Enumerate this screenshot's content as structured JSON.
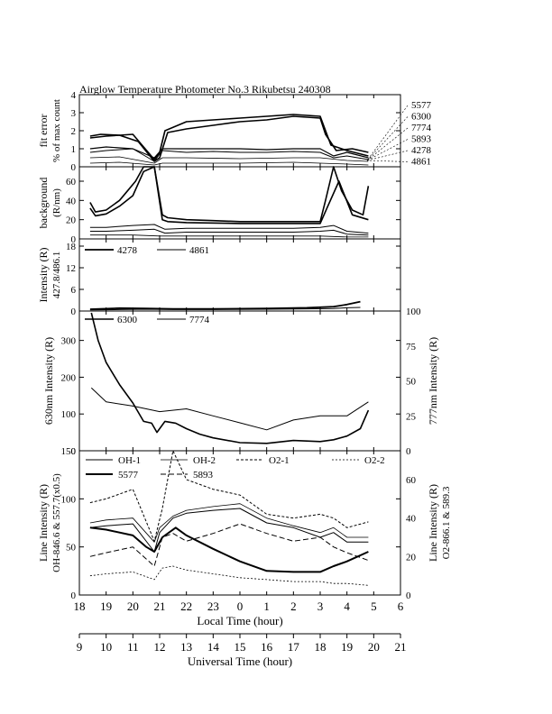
{
  "title": "Airglow Temperature Photometer No.3  Rikubetsu    240308",
  "chart_data": [
    {
      "id": "fit_error",
      "type": "line",
      "ylabel": "fit error",
      "ylabel2": "% of max count",
      "ylim": [
        0,
        4
      ],
      "yticks": [
        "0",
        "1",
        "2",
        "3",
        "4"
      ],
      "side_labels": [
        "5577",
        "6300",
        "7774",
        "5893",
        "4278",
        "4861"
      ],
      "series": [
        {
          "name": "5577",
          "x": [
            9.4,
            9.8,
            10.5,
            11.2,
            11.8,
            12.0,
            12.3,
            13.0,
            14.0,
            15.0,
            16.0,
            17.0,
            18.0,
            18.2,
            18.6,
            19.2,
            19.8
          ],
          "y": [
            1.7,
            1.8,
            1.75,
            1.4,
            0.3,
            0.5,
            1.9,
            2.1,
            2.3,
            2.5,
            2.6,
            2.8,
            2.7,
            1.8,
            0.9,
            1.0,
            0.8
          ]
        },
        {
          "name": "6300",
          "x": [
            9.4,
            10.0,
            11.0,
            11.8,
            12.0,
            12.2,
            13.0,
            14.0,
            15.0,
            16.0,
            17.0,
            18.0,
            18.4,
            19.0,
            19.8
          ],
          "y": [
            1.6,
            1.7,
            1.8,
            0.4,
            0.8,
            2.0,
            2.5,
            2.6,
            2.7,
            2.8,
            2.9,
            2.8,
            1.2,
            0.9,
            0.6
          ]
        },
        {
          "name": "7774",
          "x": [
            9.4,
            10.0,
            11.0,
            11.8,
            12.1,
            13.0,
            14.0,
            15.0,
            16.0,
            17.0,
            18.0,
            18.5,
            19.0,
            19.8
          ],
          "y": [
            0.8,
            0.9,
            1.0,
            0.3,
            0.9,
            0.8,
            0.85,
            0.8,
            0.8,
            0.85,
            0.8,
            0.5,
            0.6,
            0.4
          ]
        },
        {
          "name": "5893",
          "x": [
            9.4,
            10.0,
            11.0,
            11.8,
            12.1,
            13.0,
            14.0,
            15.0,
            16.0,
            17.0,
            18.0,
            18.5,
            19.0,
            19.8
          ],
          "y": [
            1.0,
            1.1,
            1.0,
            0.5,
            1.0,
            1.0,
            1.0,
            1.0,
            0.95,
            1.0,
            1.0,
            0.6,
            0.8,
            0.5
          ]
        },
        {
          "name": "4278",
          "x": [
            9.4,
            10.5,
            11.8,
            12.1,
            13.0,
            15.0,
            17.0,
            18.0,
            19.0,
            19.8
          ],
          "y": [
            0.5,
            0.55,
            0.2,
            0.5,
            0.5,
            0.45,
            0.5,
            0.5,
            0.35,
            0.3
          ]
        },
        {
          "name": "4861",
          "x": [
            9.4,
            10.5,
            11.8,
            12.1,
            13.0,
            15.0,
            17.0,
            18.0,
            19.0,
            19.8
          ],
          "y": [
            0.2,
            0.25,
            0.1,
            0.2,
            0.2,
            0.2,
            0.25,
            0.2,
            0.15,
            0.1
          ]
        }
      ]
    },
    {
      "id": "background",
      "type": "line",
      "ylabel": "background",
      "ylabel2": "(R/nm)",
      "ylim": [
        0,
        75
      ],
      "yticks": [
        "0",
        "20",
        "40",
        "60"
      ],
      "series": [
        {
          "name": "5577",
          "x": [
            9.4,
            9.6,
            10.0,
            10.5,
            10.8,
            11.1,
            11.4,
            11.8,
            12.1,
            12.3,
            13.0,
            14.0,
            15.0,
            16.0,
            17.0,
            18.0,
            18.2,
            18.5,
            18.8,
            19.2,
            19.6,
            19.8
          ],
          "y": [
            38,
            28,
            30,
            40,
            50,
            60,
            75,
            75,
            25,
            22,
            20,
            19,
            18,
            18,
            18,
            18,
            40,
            75,
            50,
            30,
            25,
            55
          ]
        },
        {
          "name": "6300",
          "x": [
            9.4,
            9.6,
            10.0,
            10.5,
            11.0,
            11.4,
            11.8,
            12.1,
            12.3,
            13.0,
            15.0,
            17.0,
            18.0,
            18.3,
            18.7,
            19.2,
            19.8
          ],
          "y": [
            32,
            24,
            26,
            34,
            45,
            70,
            75,
            20,
            18,
            17,
            16,
            16,
            16,
            35,
            60,
            25,
            20
          ]
        },
        {
          "name": "7774",
          "x": [
            9.4,
            10.0,
            11.0,
            11.8,
            12.2,
            13.0,
            15.0,
            17.0,
            18.0,
            18.5,
            19.0,
            19.8
          ],
          "y": [
            12,
            12,
            14,
            15,
            10,
            11,
            11,
            11,
            12,
            14,
            8,
            6
          ]
        },
        {
          "name": "5893",
          "x": [
            9.4,
            10.0,
            11.0,
            11.8,
            12.2,
            13.0,
            15.0,
            17.0,
            18.0,
            18.5,
            19.0,
            19.8
          ],
          "y": [
            8,
            8,
            9,
            10,
            6,
            7,
            7,
            7,
            8,
            9,
            5,
            4
          ]
        },
        {
          "name": "4278",
          "x": [
            9.4,
            11.0,
            12.0,
            13.0,
            15.0,
            17.0,
            18.0,
            19.0,
            19.8
          ],
          "y": [
            4,
            4,
            3,
            3,
            3,
            3,
            3,
            2,
            2
          ]
        }
      ]
    },
    {
      "id": "intensity_4278_4861",
      "type": "line",
      "ylabel": "Intensity (R)",
      "ylabel2": "427.8/486.1",
      "ylim": [
        0,
        20
      ],
      "yticks": [
        "0",
        "6",
        "12",
        "18"
      ],
      "legend": [
        "4278",
        "4861"
      ],
      "series": [
        {
          "name": "4278",
          "x": [
            9.4,
            10.5,
            11.5,
            12.5,
            14.0,
            16.0,
            17.5,
            18.5,
            19.0,
            19.5
          ],
          "y": [
            0.5,
            0.8,
            0.7,
            0.6,
            0.6,
            0.7,
            0.9,
            1.2,
            1.8,
            2.6
          ]
        },
        {
          "name": "4861",
          "x": [
            9.4,
            10.5,
            11.5,
            12.5,
            14.0,
            16.0,
            17.5,
            18.5,
            19.0,
            19.5
          ],
          "y": [
            0.3,
            0.4,
            0.5,
            0.4,
            0.4,
            0.5,
            0.6,
            0.7,
            0.9,
            1.0
          ]
        }
      ]
    },
    {
      "id": "intensity_6300_7774",
      "type": "line",
      "ylabel": "630nm Intensity (R)",
      "ylabel_right": "777nm Intensity (R)",
      "ylim": [
        0,
        380
      ],
      "yticks": [
        "0",
        "100",
        "200",
        "300"
      ],
      "ylim_right": [
        0,
        100
      ],
      "yticks_right": [
        "0",
        "25",
        "50",
        "75",
        "100"
      ],
      "legend": [
        "6300",
        "7774"
      ],
      "series": [
        {
          "name": "6300",
          "x": [
            9.45,
            9.7,
            10.0,
            10.5,
            11.0,
            11.4,
            11.7,
            11.9,
            12.2,
            12.6,
            13.0,
            13.5,
            14.0,
            15.0,
            16.0,
            17.0,
            18.0,
            18.5,
            19.0,
            19.5,
            19.8
          ],
          "y": [
            375,
            300,
            240,
            180,
            130,
            80,
            75,
            50,
            80,
            75,
            60,
            45,
            35,
            22,
            20,
            28,
            25,
            30,
            40,
            60,
            110
          ]
        },
        {
          "name": "7774",
          "x": [
            9.45,
            10.0,
            11.0,
            12.0,
            13.0,
            14.0,
            15.0,
            16.0,
            17.0,
            18.0,
            19.0,
            19.8
          ],
          "y": [
            45,
            35,
            32,
            28,
            30,
            25,
            20,
            15,
            22,
            25,
            25,
            35
          ]
        }
      ]
    },
    {
      "id": "line_intensity",
      "type": "line",
      "ylabel": "Line Intensity (R)",
      "ylabel2": "OH-846.6 & 557.7(x0.5)",
      "ylabel_right": "Line Intensity (R)",
      "ylabel_right2": "O2-866.1 & 589.3",
      "ylim": [
        0,
        150
      ],
      "yticks": [
        "0",
        "50",
        "100",
        "150"
      ],
      "ylim_right": [
        0,
        75
      ],
      "yticks_right": [
        "0",
        "20",
        "40",
        "60"
      ],
      "legend": [
        "OH-1",
        "OH-2",
        "O2-1",
        "O2-2",
        "5577",
        "5893"
      ],
      "series": [
        {
          "name": "OH-1",
          "x": [
            9.4,
            10.0,
            11.0,
            11.8,
            12.0,
            12.5,
            13.0,
            14.0,
            15.0,
            16.0,
            17.0,
            18.0,
            18.5,
            19.0,
            19.8
          ],
          "y": [
            70,
            72,
            74,
            45,
            65,
            80,
            85,
            88,
            90,
            75,
            70,
            60,
            65,
            55,
            55
          ]
        },
        {
          "name": "OH-2",
          "x": [
            9.4,
            10.0,
            11.0,
            11.8,
            12.0,
            12.5,
            13.0,
            14.0,
            15.0,
            16.0,
            17.0,
            18.0,
            18.5,
            19.0,
            19.8
          ],
          "y": [
            75,
            78,
            80,
            55,
            70,
            82,
            88,
            92,
            95,
            80,
            72,
            65,
            70,
            60,
            60
          ]
        },
        {
          "name": "O2-1",
          "x": [
            9.4,
            10.0,
            11.0,
            11.8,
            12.1,
            12.5,
            13.0,
            14.0,
            15.0,
            16.0,
            17.0,
            18.0,
            18.5,
            19.0,
            19.8
          ],
          "y": [
            48,
            50,
            55,
            28,
            45,
            75,
            60,
            55,
            52,
            42,
            40,
            42,
            40,
            35,
            38
          ]
        },
        {
          "name": "O2-2",
          "x": [
            9.4,
            10.0,
            11.0,
            11.8,
            12.1,
            12.5,
            13.0,
            14.0,
            15.0,
            16.0,
            17.0,
            18.0,
            18.5,
            19.0,
            19.8
          ],
          "y": [
            10,
            11,
            12,
            8,
            14,
            15,
            13,
            11,
            9,
            8,
            7,
            7,
            6,
            6,
            5
          ]
        },
        {
          "name": "5577",
          "x": [
            9.4,
            10.0,
            11.0,
            11.5,
            11.8,
            12.1,
            12.6,
            13.0,
            14.0,
            15.0,
            16.0,
            17.0,
            18.0,
            18.5,
            19.0,
            19.8
          ],
          "y": [
            70,
            68,
            62,
            50,
            45,
            60,
            70,
            62,
            48,
            35,
            25,
            24,
            24,
            30,
            35,
            45
          ]
        },
        {
          "name": "5893",
          "x": [
            9.4,
            10.0,
            11.0,
            11.8,
            12.1,
            12.5,
            13.0,
            14.0,
            15.0,
            16.0,
            17.0,
            18.0,
            18.5,
            19.0,
            19.8
          ],
          "y": [
            20,
            22,
            25,
            15,
            30,
            32,
            28,
            32,
            37,
            32,
            28,
            30,
            25,
            22,
            18
          ]
        }
      ]
    }
  ],
  "x_axes": {
    "local": {
      "label": "Local Time (hour)",
      "ticks": [
        "18",
        "19",
        "20",
        "21",
        "22",
        "23",
        "0",
        "1",
        "2",
        "3",
        "4",
        "5",
        "6"
      ]
    },
    "universal": {
      "label": "Universal Time (hour)",
      "ticks": [
        "9",
        "10",
        "11",
        "12",
        "13",
        "14",
        "15",
        "16",
        "17",
        "18",
        "19",
        "20",
        "21"
      ],
      "range": [
        9,
        21
      ]
    }
  }
}
